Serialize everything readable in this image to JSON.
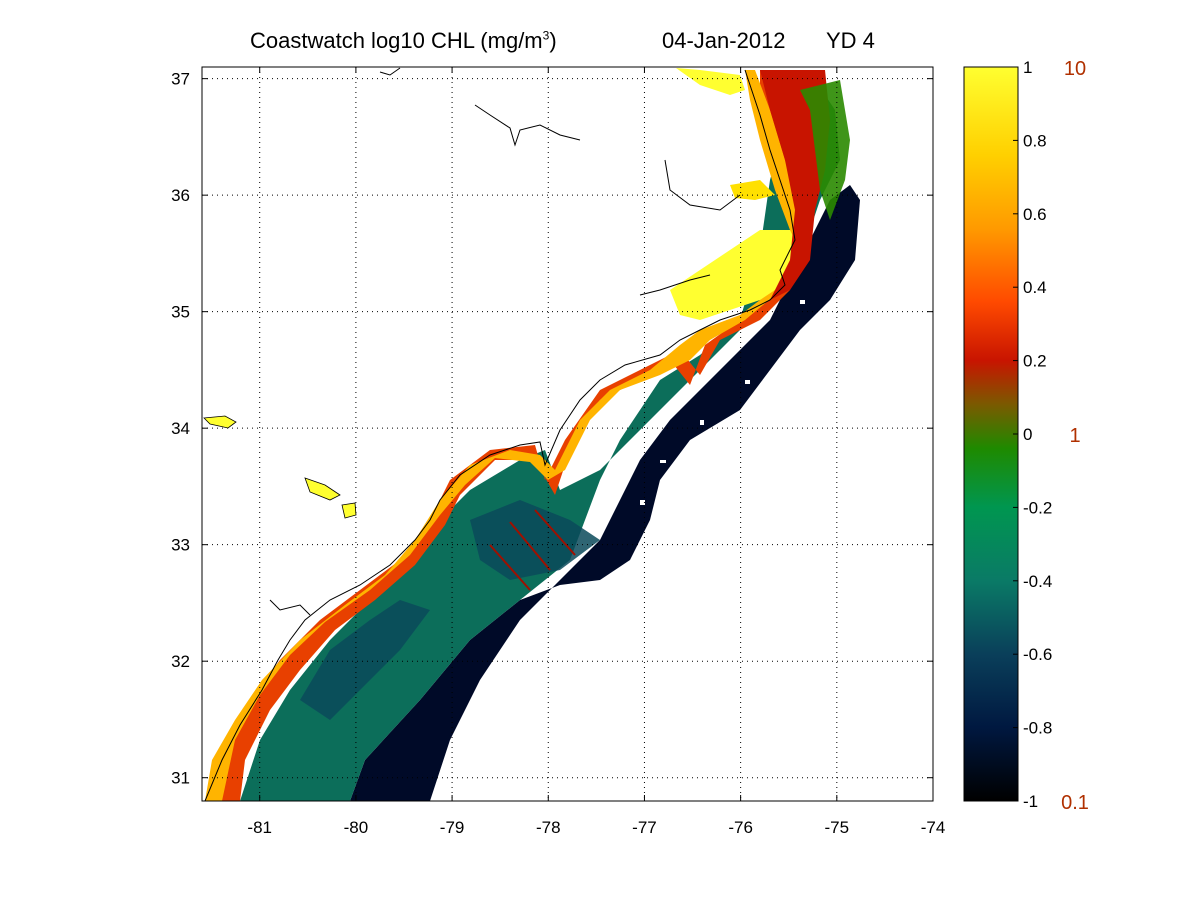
{
  "title": {
    "main": "Coastwatch  log10  CHL (mg/m",
    "main_sup": "3",
    "main_close": ")",
    "date": "04-Jan-2012",
    "yd": "YD 4"
  },
  "map": {
    "lon_ticks": [
      "-81",
      "-80",
      "-79",
      "-78",
      "-77",
      "-76",
      "-75",
      "-74"
    ],
    "lat_ticks": [
      "37",
      "36",
      "35",
      "34",
      "33",
      "32",
      "31"
    ],
    "lon_range": [
      -81.6,
      -74
    ],
    "lat_range": [
      30.8,
      37.1
    ],
    "grid": "on",
    "grid_style": "dotted"
  },
  "colorbar": {
    "ticks": [
      "1",
      "0.8",
      "0.6",
      "0.4",
      "0.2",
      "0",
      "-0.2",
      "-0.4",
      "-0.6",
      "-0.8",
      "-1"
    ],
    "range": [
      -1,
      1
    ],
    "linear_labels": [
      "10",
      "1",
      "0.1"
    ],
    "colors": [
      "#000000",
      "#001840",
      "#0a5060",
      "#009060",
      "#008a00",
      "#7a5a00",
      "#c81400",
      "#ff6a00",
      "#ffb000",
      "#ffe000",
      "#ffff20"
    ]
  }
}
